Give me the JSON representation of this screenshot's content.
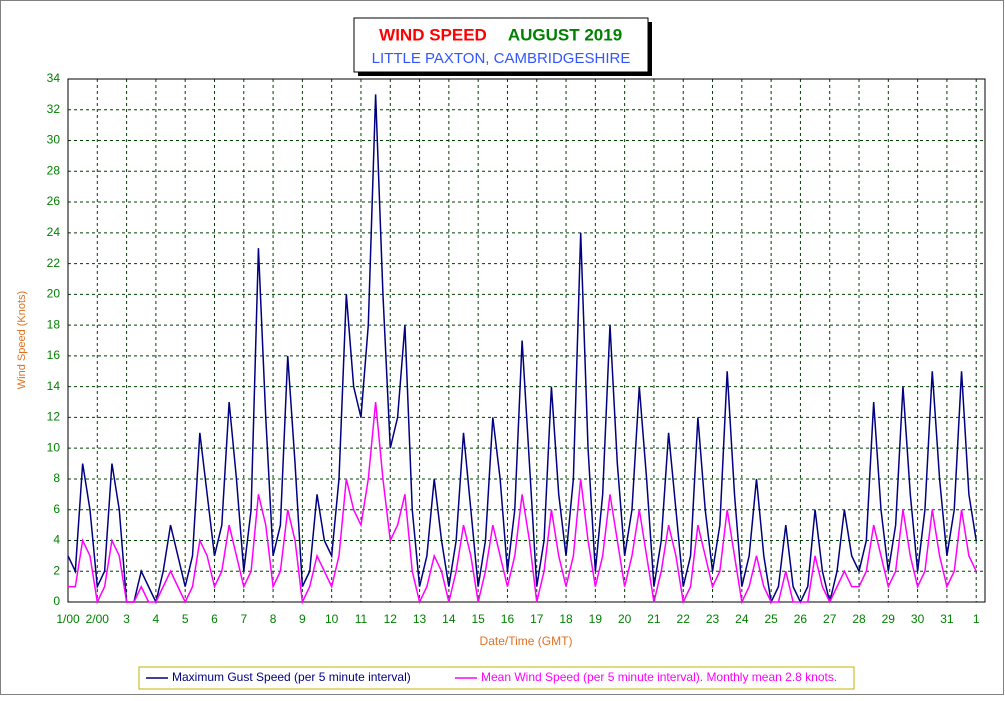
{
  "chart_data": {
    "type": "line",
    "title": "WIND SPEED",
    "date_label": "AUGUST 2019",
    "subtitle": "LITTLE PAXTON, CAMBRIDGESHIRE",
    "ylabel": "Wind Speed (Knots)",
    "xlabel": "Date/Time (GMT)",
    "xlim": [
      0,
      31.3
    ],
    "ylim": [
      0,
      34
    ],
    "yticks": [
      0,
      2,
      4,
      6,
      8,
      10,
      12,
      14,
      16,
      18,
      20,
      22,
      24,
      26,
      28,
      30,
      32,
      34
    ],
    "xticks": [
      {
        "value": 0,
        "label": "1/00"
      },
      {
        "value": 1,
        "label": "2/00"
      },
      {
        "value": 2,
        "label": "3"
      },
      {
        "value": 3,
        "label": "4"
      },
      {
        "value": 4,
        "label": "5"
      },
      {
        "value": 5,
        "label": "6"
      },
      {
        "value": 6,
        "label": "7"
      },
      {
        "value": 7,
        "label": "8"
      },
      {
        "value": 8,
        "label": "9"
      },
      {
        "value": 9,
        "label": "10"
      },
      {
        "value": 10,
        "label": "11"
      },
      {
        "value": 11,
        "label": "12"
      },
      {
        "value": 12,
        "label": "13"
      },
      {
        "value": 13,
        "label": "14"
      },
      {
        "value": 14,
        "label": "15"
      },
      {
        "value": 15,
        "label": "16"
      },
      {
        "value": 16,
        "label": "17"
      },
      {
        "value": 17,
        "label": "18"
      },
      {
        "value": 18,
        "label": "19"
      },
      {
        "value": 19,
        "label": "20"
      },
      {
        "value": 20,
        "label": "21"
      },
      {
        "value": 21,
        "label": "22"
      },
      {
        "value": 22,
        "label": "23"
      },
      {
        "value": 23,
        "label": "24"
      },
      {
        "value": 24,
        "label": "25"
      },
      {
        "value": 25,
        "label": "26"
      },
      {
        "value": 26,
        "label": "27"
      },
      {
        "value": 27,
        "label": "28"
      },
      {
        "value": 28,
        "label": "29"
      },
      {
        "value": 29,
        "label": "30"
      },
      {
        "value": 30,
        "label": "31"
      },
      {
        "value": 31,
        "label": "1"
      }
    ],
    "grid": true,
    "x": [
      0,
      0.25,
      0.5,
      0.75,
      1,
      1.25,
      1.5,
      1.75,
      2,
      2.25,
      2.5,
      2.75,
      3,
      3.25,
      3.5,
      3.75,
      4,
      4.25,
      4.5,
      4.75,
      5,
      5.25,
      5.5,
      5.75,
      6,
      6.25,
      6.5,
      6.75,
      7,
      7.25,
      7.5,
      7.75,
      8,
      8.25,
      8.5,
      8.75,
      9,
      9.25,
      9.5,
      9.75,
      10,
      10.25,
      10.5,
      10.75,
      11,
      11.25,
      11.5,
      11.75,
      12,
      12.25,
      12.5,
      12.75,
      13,
      13.25,
      13.5,
      13.75,
      14,
      14.25,
      14.5,
      14.75,
      15,
      15.25,
      15.5,
      15.75,
      16,
      16.25,
      16.5,
      16.75,
      17,
      17.25,
      17.5,
      17.75,
      18,
      18.25,
      18.5,
      18.75,
      19,
      19.25,
      19.5,
      19.75,
      20,
      20.25,
      20.5,
      20.75,
      21,
      21.25,
      21.5,
      21.75,
      22,
      22.25,
      22.5,
      22.75,
      23,
      23.25,
      23.5,
      23.75,
      24,
      24.25,
      24.5,
      24.75,
      25,
      25.25,
      25.5,
      25.75,
      26,
      26.25,
      26.5,
      26.75,
      27,
      27.25,
      27.5,
      27.75,
      28,
      28.25,
      28.5,
      28.75,
      29,
      29.25,
      29.5,
      29.75,
      30,
      30.25,
      30.5,
      30.75,
      31
    ],
    "series": [
      {
        "name": "Maximum Gust Speed (per 5 minute interval)",
        "color": "#000080",
        "values": [
          3,
          2,
          9,
          6,
          1,
          2,
          9,
          6,
          0,
          0,
          2,
          1,
          0,
          2,
          5,
          3,
          1,
          3,
          11,
          7,
          3,
          5,
          13,
          8,
          2,
          6,
          23,
          12,
          3,
          5,
          16,
          9,
          1,
          2,
          7,
          4,
          3,
          8,
          20,
          14,
          12,
          18,
          33,
          20,
          10,
          12,
          18,
          6,
          1,
          3,
          8,
          4,
          1,
          4,
          11,
          6,
          1,
          4,
          12,
          8,
          2,
          6,
          17,
          9,
          1,
          4,
          14,
          7,
          3,
          8,
          24,
          10,
          2,
          7,
          18,
          9,
          3,
          6,
          14,
          8,
          1,
          4,
          11,
          6,
          1,
          3,
          12,
          6,
          2,
          5,
          15,
          7,
          1,
          3,
          8,
          3,
          0,
          1,
          5,
          1,
          0,
          1,
          6,
          2,
          0,
          2,
          6,
          3,
          2,
          4,
          13,
          6,
          2,
          5,
          14,
          7,
          2,
          6,
          15,
          8,
          3,
          6,
          15,
          7,
          4
        ]
      },
      {
        "name": "Mean Wind Speed (per 5 minute interval). Monthly mean 2.8 knots.",
        "color": "#ff00ff",
        "values": [
          1,
          1,
          4,
          3,
          0,
          1,
          4,
          3,
          0,
          0,
          1,
          0,
          0,
          1,
          2,
          1,
          0,
          1,
          4,
          3,
          1,
          2,
          5,
          3,
          1,
          2,
          7,
          5,
          1,
          2,
          6,
          4,
          0,
          1,
          3,
          2,
          1,
          3,
          8,
          6,
          5,
          8,
          13,
          8,
          4,
          5,
          7,
          2,
          0,
          1,
          3,
          2,
          0,
          2,
          5,
          3,
          0,
          2,
          5,
          3,
          1,
          3,
          7,
          4,
          0,
          2,
          6,
          3,
          1,
          3,
          8,
          4,
          1,
          3,
          7,
          4,
          1,
          3,
          6,
          3,
          0,
          2,
          5,
          3,
          0,
          1,
          5,
          3,
          1,
          2,
          6,
          3,
          0,
          1,
          3,
          1,
          0,
          0,
          2,
          0,
          0,
          0,
          3,
          1,
          0,
          1,
          2,
          1,
          1,
          2,
          5,
          3,
          1,
          2,
          6,
          3,
          1,
          2,
          6,
          3,
          1,
          2,
          6,
          3,
          2
        ]
      }
    ]
  }
}
